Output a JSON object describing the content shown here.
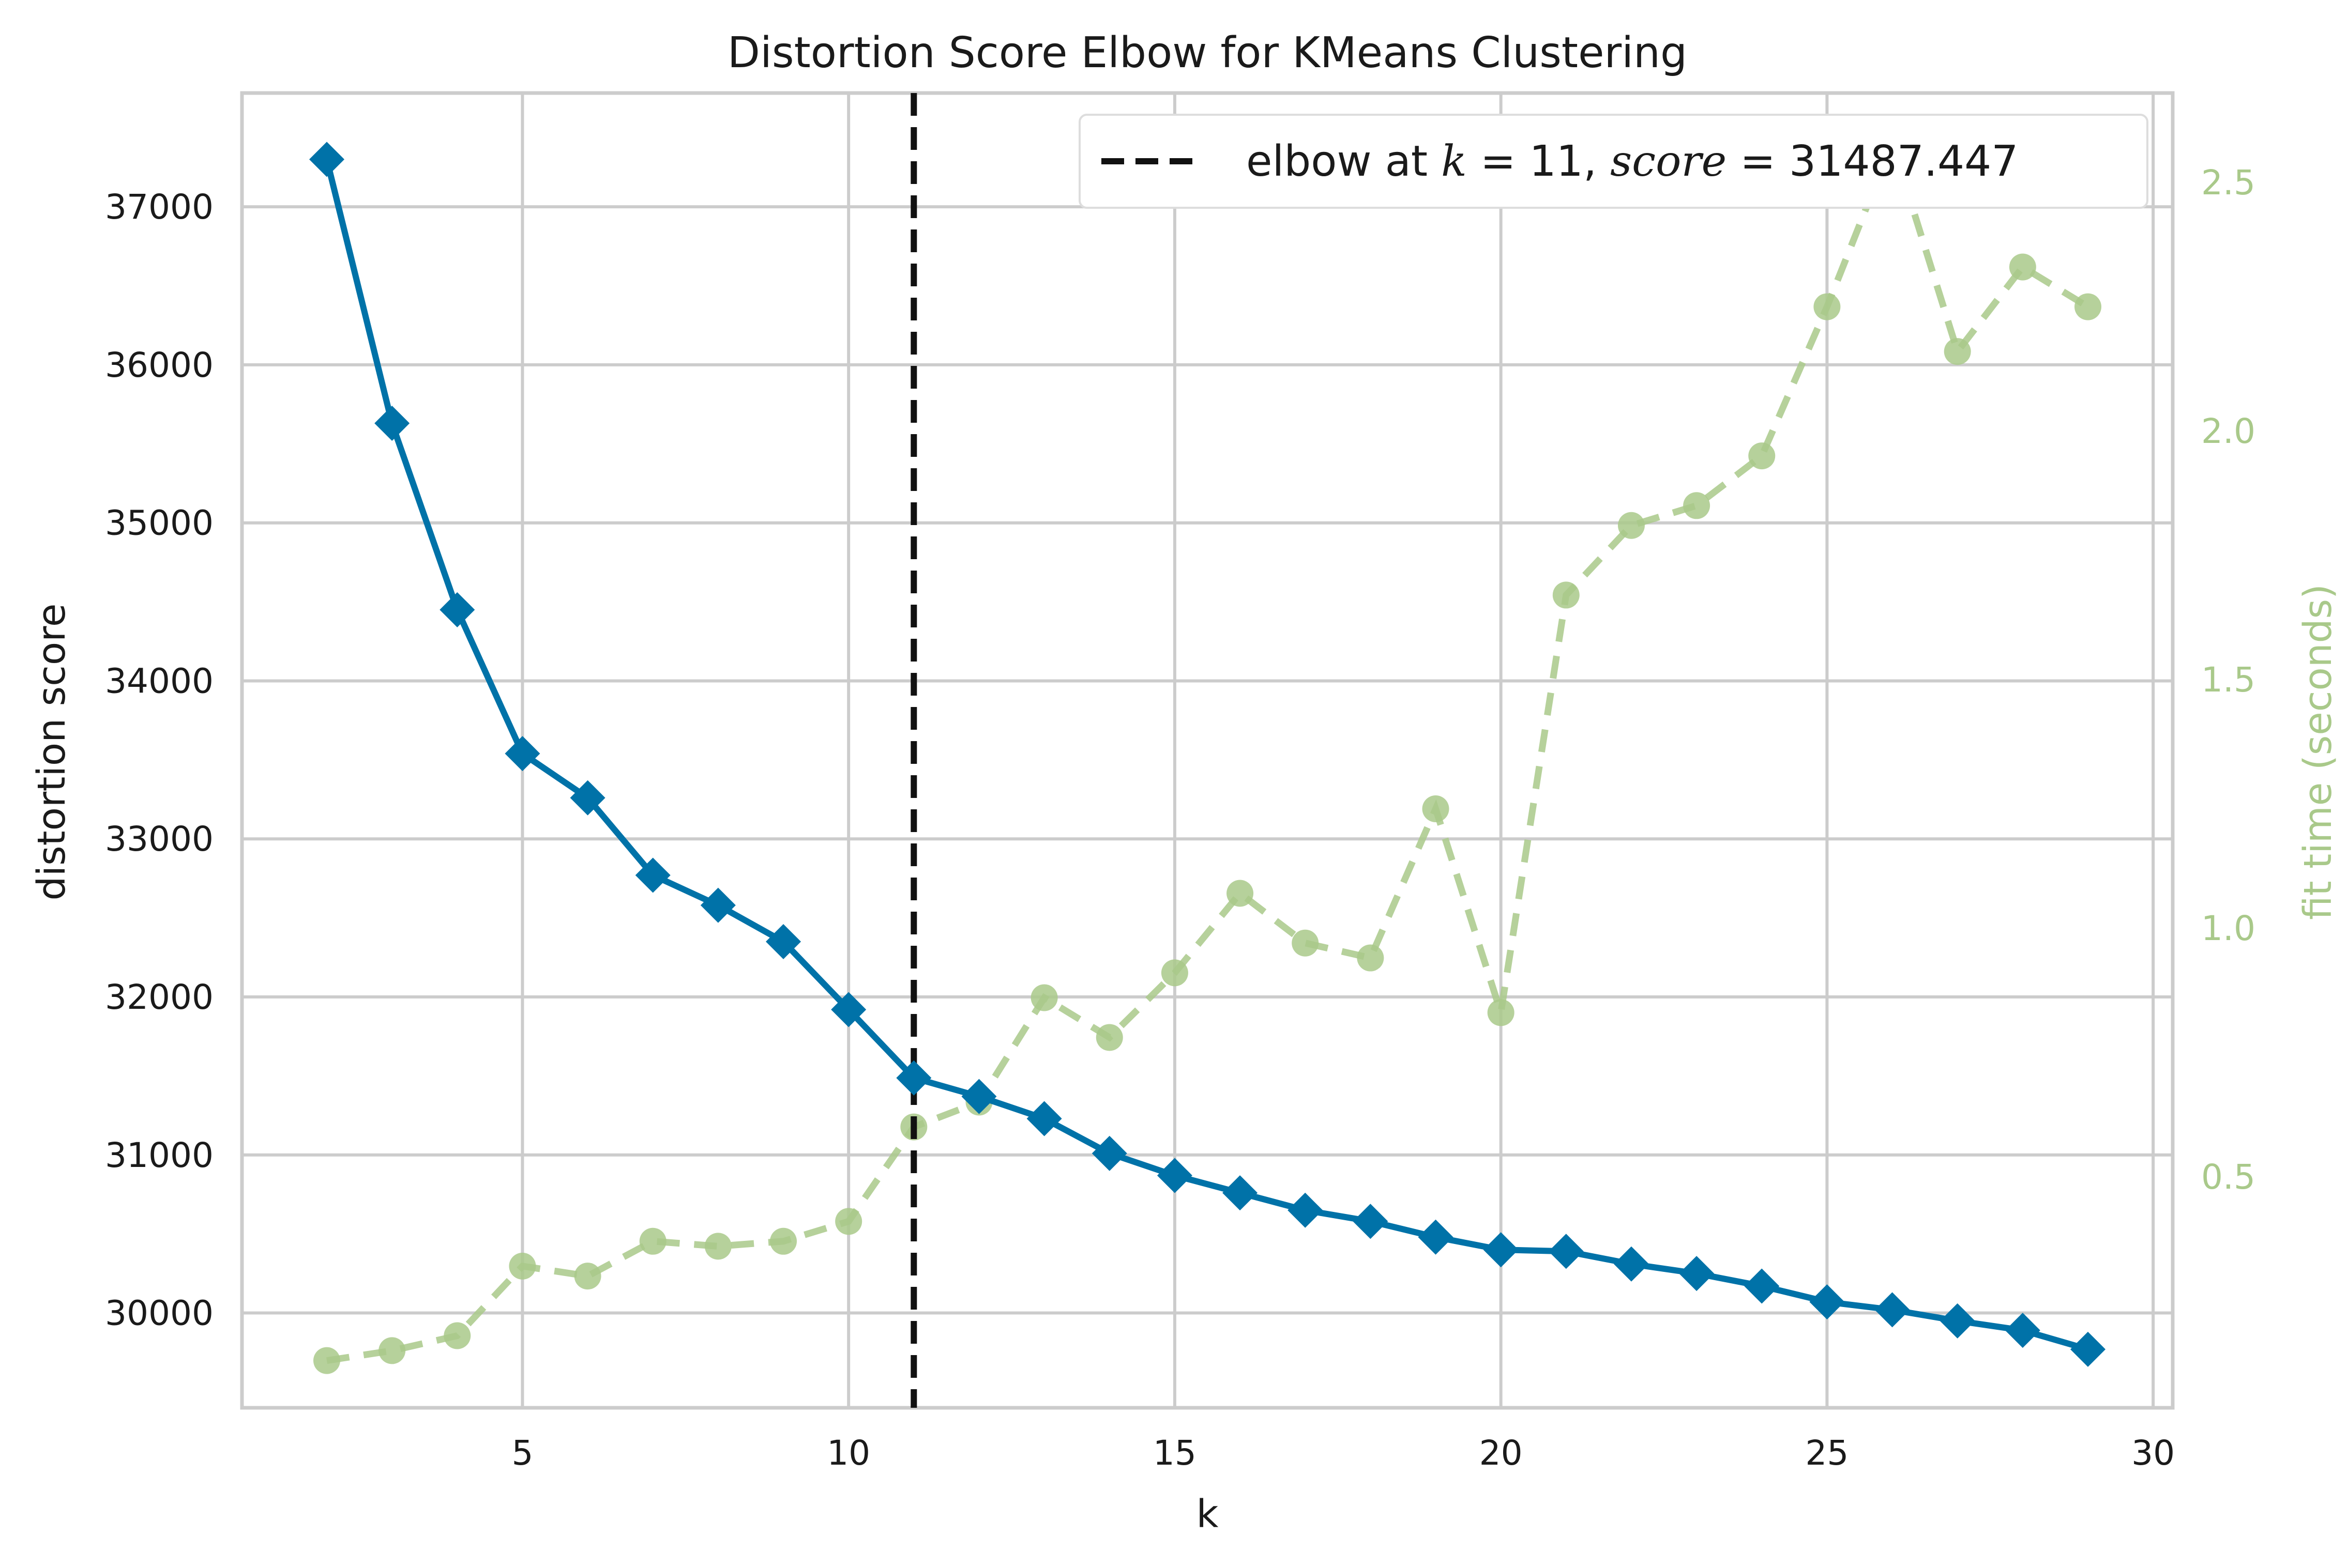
{
  "chart_data": {
    "type": "line",
    "title": "Distortion Score Elbow for KMeans Clustering",
    "xlabel": "k",
    "ylabel": "distortion score",
    "y2label": "fit time (seconds)",
    "xlim": [
      0.7,
      30.3
    ],
    "ylim": [
      29400,
      37720
    ],
    "y2lim": [
      0.035,
      2.68
    ],
    "xticks": [
      5,
      10,
      15,
      20,
      25,
      30
    ],
    "yticks": [
      30000,
      31000,
      32000,
      33000,
      34000,
      35000,
      36000,
      37000
    ],
    "y2ticks": [
      0.5,
      1.0,
      1.5,
      2.0,
      2.5
    ],
    "xtick_labels": [
      "5",
      "10",
      "15",
      "20",
      "25",
      "30"
    ],
    "ytick_labels": [
      "30000",
      "31000",
      "32000",
      "33000",
      "34000",
      "35000",
      "36000",
      "37000"
    ],
    "y2tick_labels": [
      "0.5",
      "1.0",
      "1.5",
      "2.0",
      "2.5"
    ],
    "grid": true,
    "legend_position": "top-right",
    "legend": {
      "prefix": "elbow at ",
      "k_symbol": "k",
      "k_expr": " = 11, ",
      "score_symbol": "score",
      "score_expr": " = 31487.447"
    },
    "elbow_k": 11,
    "x": [
      2,
      3,
      4,
      5,
      6,
      7,
      8,
      9,
      10,
      11,
      12,
      13,
      14,
      15,
      16,
      17,
      18,
      19,
      20,
      21,
      22,
      23,
      24,
      25,
      26,
      27,
      28,
      29
    ],
    "series": [
      {
        "name": "distortion score",
        "axis": "left",
        "color": "#0072a8",
        "values": [
          37300,
          35630,
          34450,
          33540,
          33260,
          32770,
          32580,
          32350,
          31920,
          31487.447,
          31370,
          31230,
          31010,
          30870,
          30760,
          30650,
          30580,
          30480,
          30400,
          30390,
          30310,
          30250,
          30170,
          30070,
          30020,
          29950,
          29890,
          29770
        ]
      },
      {
        "name": "fit time (seconds)",
        "axis": "right",
        "color": "#a9c98a",
        "values": [
          0.13,
          0.15,
          0.18,
          0.32,
          0.3,
          0.37,
          0.36,
          0.37,
          0.41,
          0.6,
          0.65,
          0.86,
          0.78,
          0.91,
          1.07,
          0.97,
          0.94,
          1.24,
          0.83,
          1.67,
          1.81,
          1.85,
          1.95,
          2.25,
          2.58,
          2.16,
          2.33,
          2.25
        ]
      }
    ]
  }
}
